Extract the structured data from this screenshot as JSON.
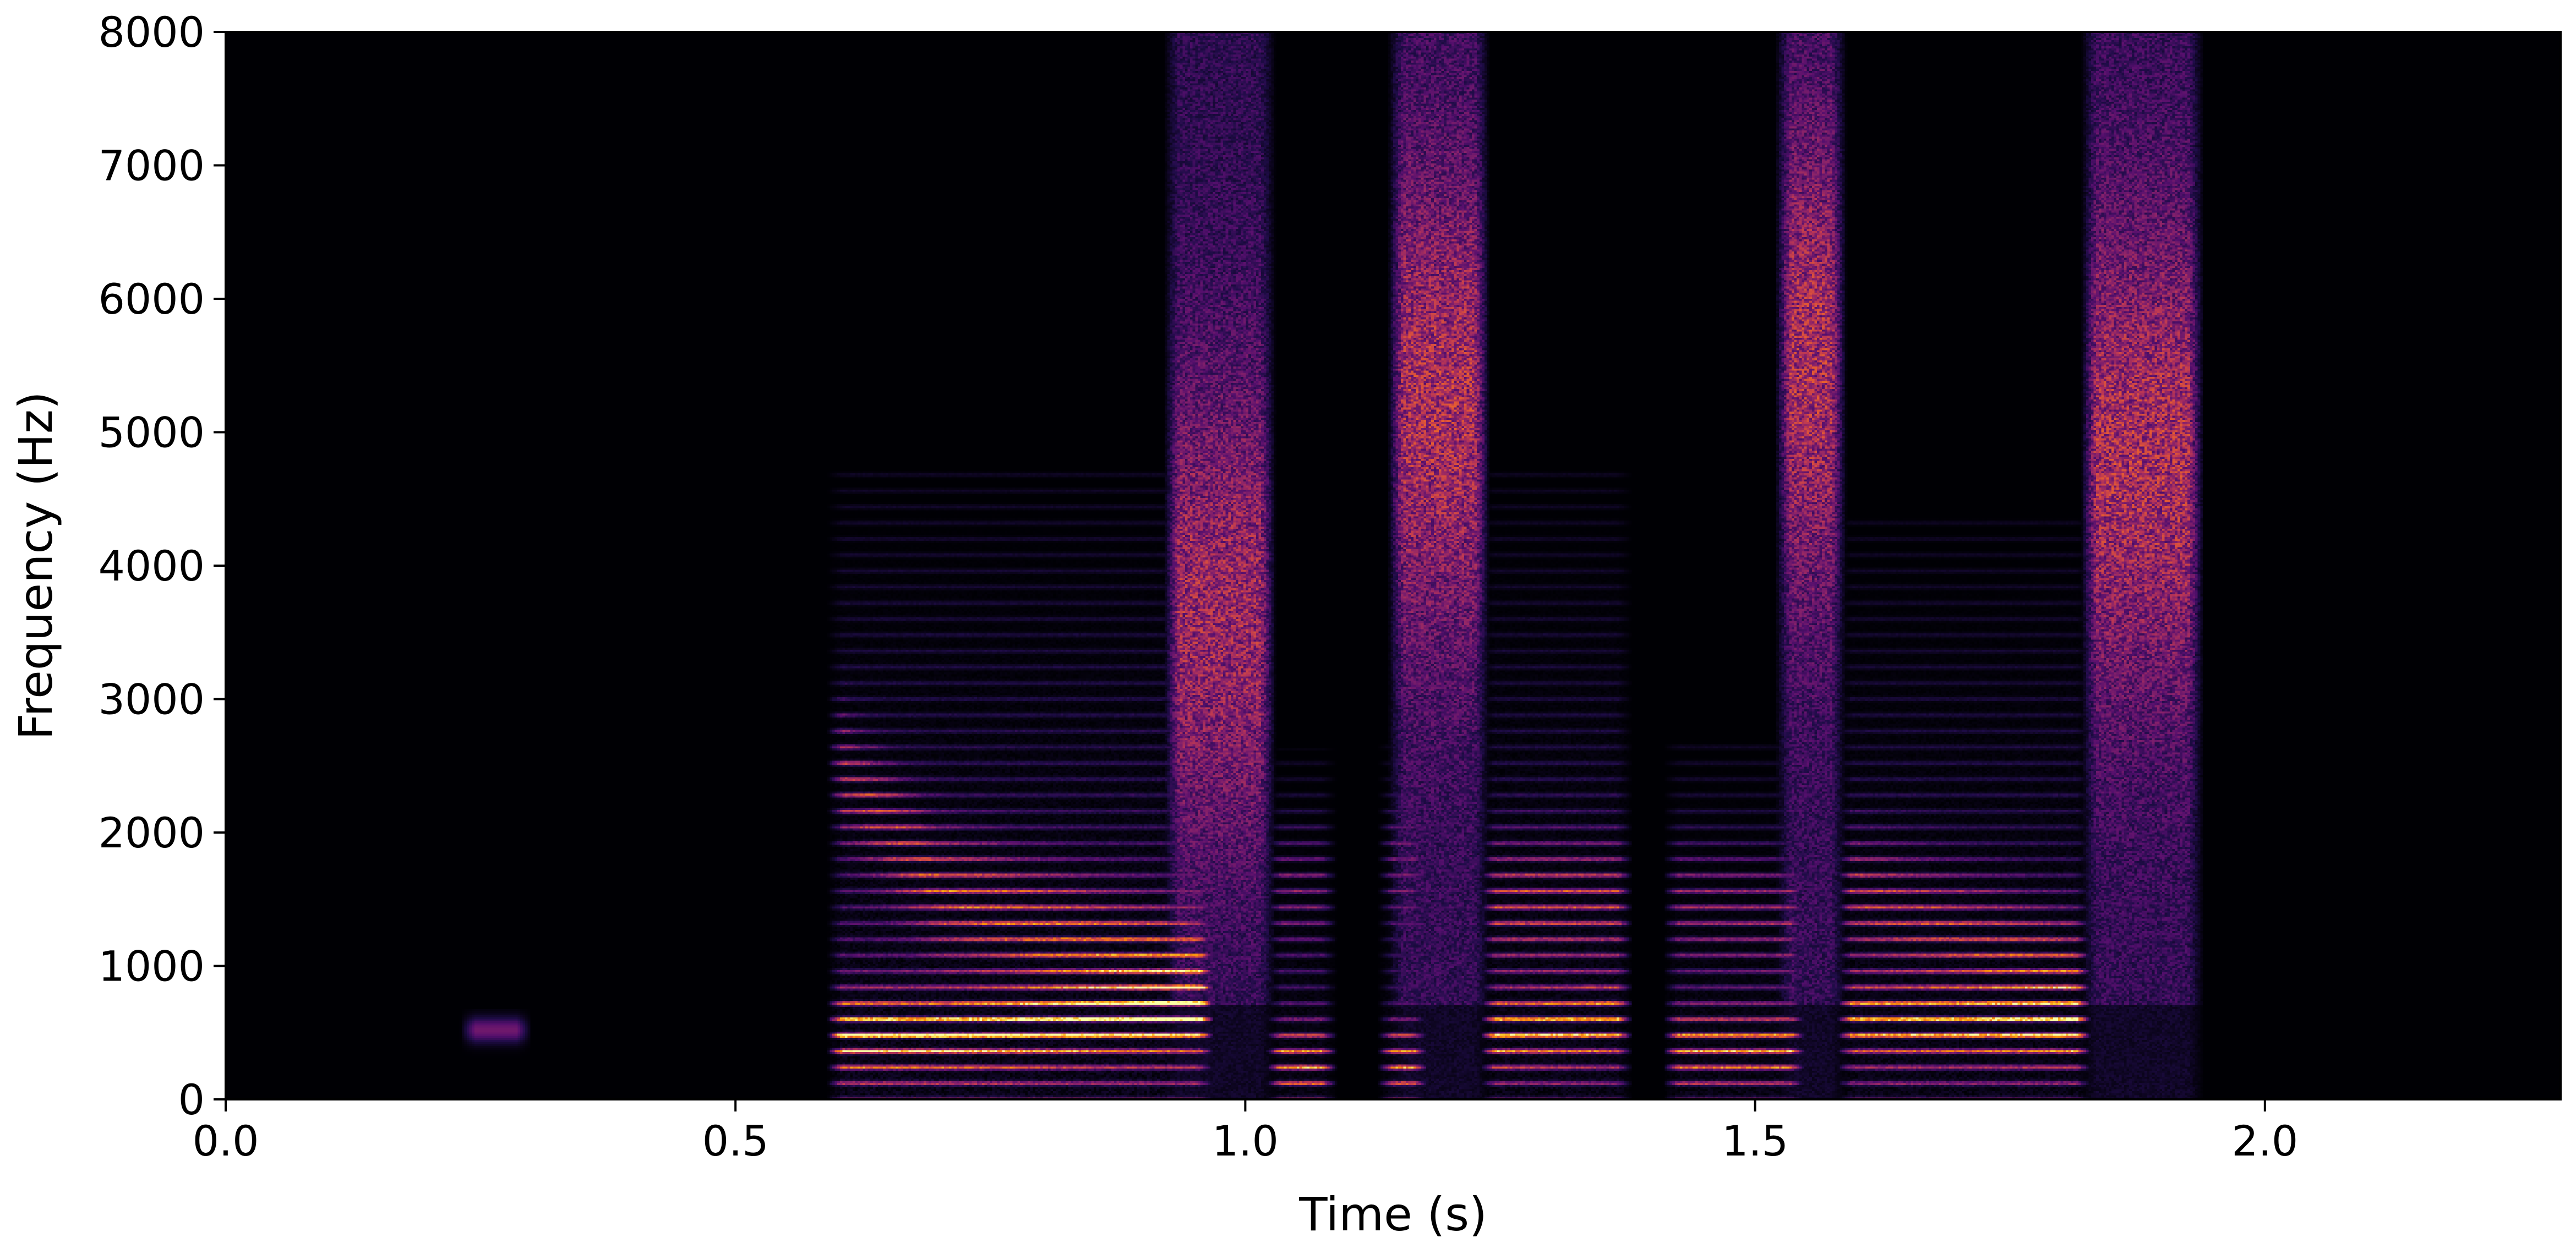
{
  "chart_data": {
    "type": "heatmap",
    "subtype": "spectrogram",
    "title": "",
    "xlabel": "Time (s)",
    "ylabel": "Frequency (Hz)",
    "xlim": [
      0.0,
      2.29
    ],
    "ylim": [
      0,
      8000
    ],
    "x_ticks": [
      0.0,
      0.5,
      1.0,
      1.5,
      2.0
    ],
    "x_tick_labels": [
      "0.0",
      "0.5",
      "1.0",
      "1.5",
      "2.0"
    ],
    "y_ticks": [
      0,
      1000,
      2000,
      3000,
      4000,
      5000,
      6000,
      7000,
      8000
    ],
    "y_tick_labels": [
      "0",
      "1000",
      "2000",
      "3000",
      "4000",
      "5000",
      "6000",
      "7000",
      "8000"
    ],
    "colormap": "inferno",
    "background_color": "#000004",
    "grid": false,
    "legend": "none",
    "f0_hz": 120,
    "segments": [
      {
        "label": "faint blip",
        "t0": 0.23,
        "t1": 0.3,
        "fmax": 650,
        "level": 0.35,
        "kind": "blip"
      },
      {
        "label": "voiced segment 1",
        "t0": 0.59,
        "t1": 0.97,
        "fmax": 4500,
        "level": 1.0,
        "kind": "voiced",
        "formants": [
          [
            0.59,
            500,
            2600
          ],
          [
            0.7,
            500,
            1600
          ],
          [
            0.8,
            550,
            1300
          ],
          [
            0.93,
            650,
            1000
          ]
        ]
      },
      {
        "label": "fricative 1",
        "t0": 0.92,
        "t1": 1.03,
        "fmax": 8000,
        "level": 0.55,
        "kind": "fricative",
        "peak_hz": 3700
      },
      {
        "label": "burst 1",
        "t0": 1.02,
        "t1": 1.09,
        "fmax": 2500,
        "level": 0.7,
        "kind": "voiced",
        "formants": [
          [
            1.02,
            300,
            1600
          ],
          [
            1.09,
            300,
            1600
          ]
        ]
      },
      {
        "label": "burst 2",
        "t0": 1.13,
        "t1": 1.18,
        "fmax": 2600,
        "level": 0.7,
        "kind": "voiced",
        "formants": [
          [
            1.13,
            300,
            1800
          ],
          [
            1.18,
            300,
            1800
          ]
        ]
      },
      {
        "label": "fricative 2",
        "t0": 1.14,
        "t1": 1.24,
        "fmax": 8000,
        "level": 0.6,
        "kind": "fricative",
        "peak_hz": 5200
      },
      {
        "label": "voiced segment 2",
        "t0": 1.23,
        "t1": 1.38,
        "fmax": 4500,
        "level": 0.85,
        "kind": "voiced",
        "formants": [
          [
            1.23,
            500,
            1500
          ],
          [
            1.38,
            600,
            1500
          ]
        ]
      },
      {
        "label": "voiced segment 3",
        "t0": 1.41,
        "t1": 1.55,
        "fmax": 2600,
        "level": 0.75,
        "kind": "voiced",
        "formants": [
          [
            1.41,
            400,
            1500
          ],
          [
            1.55,
            400,
            1400
          ]
        ]
      },
      {
        "label": "fricative 3",
        "t0": 1.52,
        "t1": 1.59,
        "fmax": 8000,
        "level": 0.6,
        "kind": "fricative",
        "peak_hz": 5500
      },
      {
        "label": "voiced segment 4",
        "t0": 1.58,
        "t1": 1.83,
        "fmax": 4200,
        "level": 0.85,
        "kind": "voiced",
        "formants": [
          [
            1.58,
            600,
            1600
          ],
          [
            1.83,
            550,
            900
          ]
        ]
      },
      {
        "label": "fricative 4",
        "t0": 1.82,
        "t1": 1.94,
        "fmax": 7800,
        "level": 0.6,
        "kind": "fricative",
        "peak_hz": 4800
      }
    ]
  }
}
